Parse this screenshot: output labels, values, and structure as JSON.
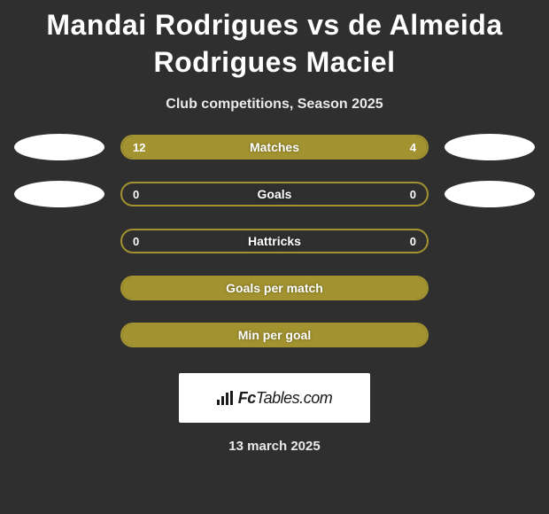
{
  "header": {
    "title": "Mandai Rodrigues vs de Almeida Rodrigues Maciel",
    "subtitle": "Club competitions, Season 2025"
  },
  "colors": {
    "background": "#2f2f2f",
    "bar_fill": "#a39330",
    "bar_border": "#a39330",
    "oval": "#ffffff",
    "text": "#ffffff"
  },
  "stats": [
    {
      "label": "Matches",
      "left_value": "12",
      "right_value": "4",
      "left_fill_pct": 75,
      "right_fill_pct": 25,
      "show_left_oval": true,
      "show_right_oval": true
    },
    {
      "label": "Goals",
      "left_value": "0",
      "right_value": "0",
      "left_fill_pct": 0,
      "right_fill_pct": 0,
      "show_left_oval": true,
      "show_right_oval": true
    },
    {
      "label": "Hattricks",
      "left_value": "0",
      "right_value": "0",
      "left_fill_pct": 0,
      "right_fill_pct": 0,
      "show_left_oval": false,
      "show_right_oval": false
    },
    {
      "label": "Goals per match",
      "left_value": "",
      "right_value": "",
      "left_fill_pct": 100,
      "right_fill_pct": 0,
      "show_left_oval": false,
      "show_right_oval": false
    },
    {
      "label": "Min per goal",
      "left_value": "",
      "right_value": "",
      "left_fill_pct": 100,
      "right_fill_pct": 0,
      "show_left_oval": false,
      "show_right_oval": false
    }
  ],
  "brand": {
    "prefix": "Fc",
    "suffix": "Tables.com"
  },
  "footer": {
    "date": "13 march 2025"
  }
}
